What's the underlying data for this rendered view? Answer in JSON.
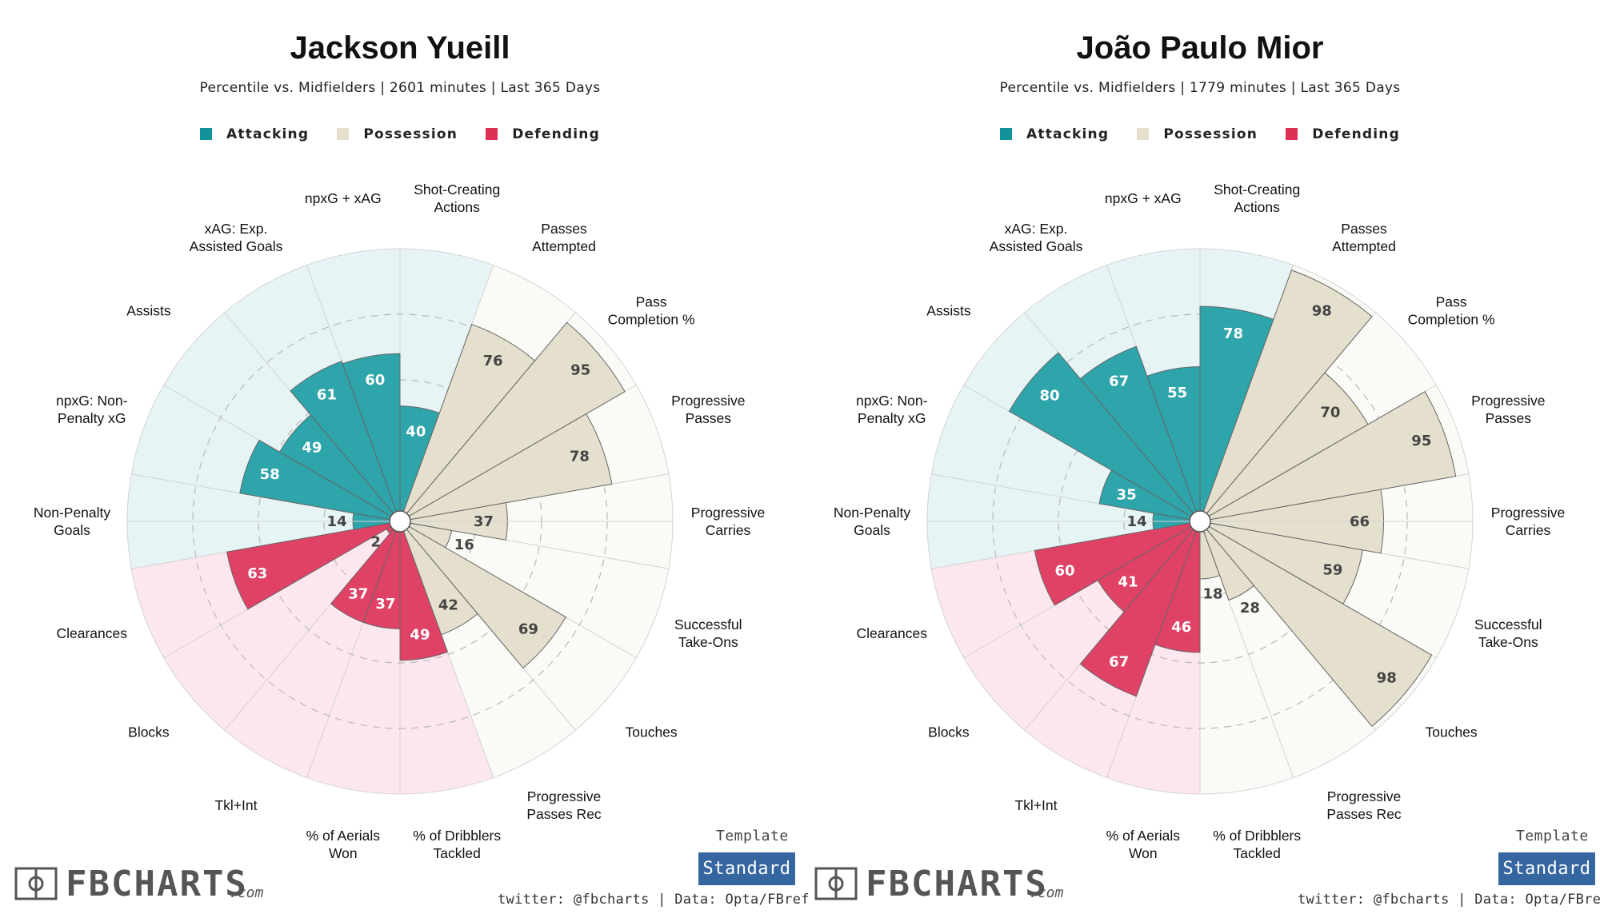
{
  "colors": {
    "attacking": "#2ea4ab",
    "possession": "#e5dfcd",
    "defending": "#e04266",
    "attacking_bg": "#e7f4f5",
    "possession_bg": "#fafaf7",
    "defending_bg": "#fbe7ed",
    "template_button": "#3566a0"
  },
  "footer": {
    "template_label": "Template",
    "template_value": "Standard",
    "logo_text": "FBCHARTS",
    "logo_suffix": ".com",
    "credits": "twitter: @fbcharts | Data: Opta/FBref"
  },
  "chart_data": [
    {
      "type": "radar",
      "title": "Jackson Yueill",
      "subtitle": "Percentile vs. Midfielders | 2601 minutes | Last 365 Days",
      "legend": [
        "Attacking",
        "Possession",
        "Defending"
      ],
      "axis_range": [
        0,
        100
      ],
      "categories": [
        {
          "name": "Shot-Creating Actions",
          "lines": [
            "Shot-Creating",
            "Actions"
          ],
          "group": "attacking",
          "value": 40
        },
        {
          "name": "Passes Attempted",
          "lines": [
            "Passes",
            "Attempted"
          ],
          "group": "possession",
          "value": 76
        },
        {
          "name": "Pass Completion %",
          "lines": [
            "Pass",
            "Completion %"
          ],
          "group": "possession",
          "value": 95
        },
        {
          "name": "Progressive Passes",
          "lines": [
            "Progressive",
            "Passes"
          ],
          "group": "possession",
          "value": 78
        },
        {
          "name": "Progressive Carries",
          "lines": [
            "Progressive",
            "Carries"
          ],
          "group": "possession",
          "value": 37
        },
        {
          "name": "Successful Take-Ons",
          "lines": [
            "Successful",
            "Take-Ons"
          ],
          "group": "possession",
          "value": 16
        },
        {
          "name": "Touches",
          "lines": [
            "Touches"
          ],
          "group": "possession",
          "value": 69
        },
        {
          "name": "Progressive Passes Rec",
          "lines": [
            "Progressive",
            "Passes Rec"
          ],
          "group": "possession",
          "value": 42
        },
        {
          "name": "% of Dribblers Tackled",
          "lines": [
            "% of Dribblers",
            "Tackled"
          ],
          "group": "defending",
          "value": 49
        },
        {
          "name": "% of Aerials Won",
          "lines": [
            "% of Aerials",
            "Won"
          ],
          "group": "defending",
          "value": 37
        },
        {
          "name": "Tkl+Int",
          "lines": [
            "Tkl+Int"
          ],
          "group": "defending",
          "value": 37
        },
        {
          "name": "Blocks",
          "lines": [
            "Blocks"
          ],
          "group": "defending",
          "value": 2
        },
        {
          "name": "Clearances",
          "lines": [
            "Clearances"
          ],
          "group": "defending",
          "value": 63
        },
        {
          "name": "Non-Penalty Goals",
          "lines": [
            "Non-Penalty",
            "Goals"
          ],
          "group": "attacking",
          "value": 14
        },
        {
          "name": "npxG: Non-Penalty xG",
          "lines": [
            "npxG: Non-",
            "Penalty xG"
          ],
          "group": "attacking",
          "value": 58
        },
        {
          "name": "Assists",
          "lines": [
            "Assists"
          ],
          "group": "attacking",
          "value": 49
        },
        {
          "name": "xAG: Exp. Assisted Goals",
          "lines": [
            "xAG: Exp.",
            "Assisted Goals"
          ],
          "group": "attacking",
          "value": 61
        },
        {
          "name": "npxG + xAG",
          "lines": [
            "npxG + xAG"
          ],
          "group": "attacking",
          "value": 60
        }
      ]
    },
    {
      "type": "radar",
      "title": "João Paulo Mior",
      "subtitle": "Percentile vs. Midfielders | 1779 minutes | Last 365 Days",
      "legend": [
        "Attacking",
        "Possession",
        "Defending"
      ],
      "axis_range": [
        0,
        100
      ],
      "categories": [
        {
          "name": "Shot-Creating Actions",
          "lines": [
            "Shot-Creating",
            "Actions"
          ],
          "group": "attacking",
          "value": 78
        },
        {
          "name": "Passes Attempted",
          "lines": [
            "Passes",
            "Attempted"
          ],
          "group": "possession",
          "value": 98
        },
        {
          "name": "Pass Completion %",
          "lines": [
            "Pass",
            "Completion %"
          ],
          "group": "possession",
          "value": 70
        },
        {
          "name": "Progressive Passes",
          "lines": [
            "Progressive",
            "Passes"
          ],
          "group": "possession",
          "value": 95
        },
        {
          "name": "Progressive Carries",
          "lines": [
            "Progressive",
            "Carries"
          ],
          "group": "possession",
          "value": 66
        },
        {
          "name": "Successful Take-Ons",
          "lines": [
            "Successful",
            "Take-Ons"
          ],
          "group": "possession",
          "value": 59
        },
        {
          "name": "Touches",
          "lines": [
            "Touches"
          ],
          "group": "possession",
          "value": 98
        },
        {
          "name": "Progressive Passes Rec",
          "lines": [
            "Progressive",
            "Passes Rec"
          ],
          "group": "possession",
          "value": 28
        },
        {
          "name": "% of Dribblers Tackled",
          "lines": [
            "% of Dribblers",
            "Tackled"
          ],
          "group": "possession",
          "value": 18
        },
        {
          "name": "% of Aerials Won",
          "lines": [
            "% of Aerials",
            "Won"
          ],
          "group": "defending",
          "value": 46
        },
        {
          "name": "Tkl+Int",
          "lines": [
            "Tkl+Int"
          ],
          "group": "defending",
          "value": 67
        },
        {
          "name": "Blocks",
          "lines": [
            "Blocks"
          ],
          "group": "defending",
          "value": 41
        },
        {
          "name": "Clearances",
          "lines": [
            "Clearances"
          ],
          "group": "defending",
          "value": 60
        },
        {
          "name": "Non-Penalty Goals",
          "lines": [
            "Non-Penalty",
            "Goals"
          ],
          "group": "attacking",
          "value": 14
        },
        {
          "name": "npxG: Non-Penalty xG",
          "lines": [
            "npxG: Non-",
            "Penalty xG"
          ],
          "group": "attacking",
          "value": 35
        },
        {
          "name": "Assists",
          "lines": [
            "Assists"
          ],
          "group": "attacking",
          "value": 80
        },
        {
          "name": "xAG: Exp. Assisted Goals",
          "lines": [
            "xAG: Exp.",
            "Assisted Goals"
          ],
          "group": "attacking",
          "value": 67
        },
        {
          "name": "npxG + xAG",
          "lines": [
            "npxG + xAG"
          ],
          "group": "attacking",
          "value": 55
        }
      ]
    }
  ]
}
